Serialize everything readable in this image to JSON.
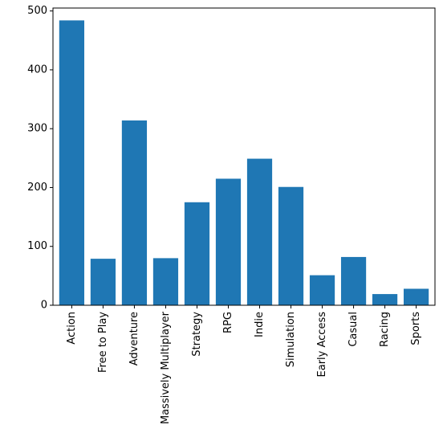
{
  "chart_data": {
    "type": "bar",
    "title": "",
    "xlabel": "",
    "ylabel": "",
    "categories": [
      "Action",
      "Free to Play",
      "Adventure",
      "Massively Multiplayer",
      "Strategy",
      "RPG",
      "Indie",
      "Simulation",
      "Early Access",
      "Casual",
      "Racing",
      "Sports"
    ],
    "values": [
      484,
      79,
      314,
      80,
      175,
      215,
      249,
      201,
      51,
      82,
      19,
      28
    ],
    "ylim": [
      0,
      505
    ],
    "yticks": [
      0,
      100,
      200,
      300,
      400,
      500
    ],
    "ytick_labels": [
      "0",
      "100",
      "200",
      "300",
      "400",
      "500"
    ],
    "bar_color": "#1f77b4",
    "grid": false,
    "legend": "none"
  }
}
